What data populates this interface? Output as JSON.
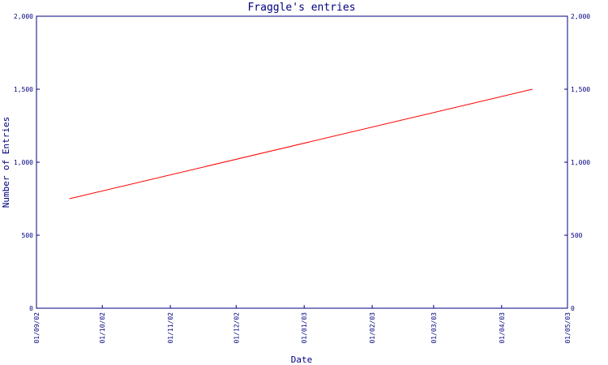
{
  "chart_data": {
    "type": "line",
    "title": "Fraggle's entries",
    "xlabel": "Date",
    "ylabel": "Number of Entries",
    "x_ticks": [
      "01/09/02",
      "01/10/02",
      "01/11/02",
      "01/12/02",
      "01/01/03",
      "01/02/03",
      "01/03/03",
      "01/04/03",
      "01/05/03"
    ],
    "y_ticks": [
      "0",
      "500",
      "1,000",
      "1,500",
      "2,000"
    ],
    "ylim": [
      0,
      2000
    ],
    "xlim": [
      "01/09/02",
      "01/05/03"
    ],
    "grid": false,
    "series": [
      {
        "color": "#ff0000",
        "points": [
          {
            "x": "2002-09-16",
            "y": 750
          },
          {
            "x": "2003-04-15",
            "y": 1500
          }
        ]
      }
    ]
  }
}
